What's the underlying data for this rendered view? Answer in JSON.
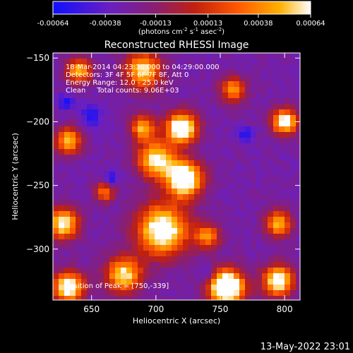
{
  "colorbar": {
    "ticks": [
      "-0.00064",
      "-0.00038",
      "-0.00013",
      "0.00013",
      "0.00038",
      "0.00064"
    ],
    "tick_values": [
      -0.00064,
      -0.00038,
      -0.00013,
      0.00013,
      0.00038,
      0.00064
    ],
    "label_prefix": "(photons cm",
    "label_exp1": "-2",
    "label_mid": " s",
    "label_exp2": "-1",
    "label_mid2": " asec",
    "label_exp3": "-2",
    "label_suffix": ")",
    "range": [
      -0.00064,
      0.00064
    ],
    "colors": [
      "#1010ff",
      "#6a1fc0",
      "#8a1f6f",
      "#c02010",
      "#ff5a00",
      "#ffb000",
      "#ffffff"
    ]
  },
  "chart_data": {
    "type": "heatmap",
    "title": "Reconstructed RHESSI Image",
    "xlabel": "Heliocentric X (arcsec)",
    "ylabel": "Heliocentric Y (arcsec)",
    "x_ticks": [
      650,
      700,
      750,
      800
    ],
    "y_ticks": [
      -150,
      -200,
      -250,
      -300
    ],
    "xlim": [
      620,
      812
    ],
    "ylim": [
      -340,
      -146
    ],
    "peak": {
      "x": 750,
      "y": -339
    },
    "annotations": [
      "18-Mar-2014 04:23:36.000 to 04:29:00.000",
      "Detectors: 3F 4F 5F 6F 7F 8F, Att 0",
      "Energy Range: 12.0 - 25.0 keV",
      "Clean     Total counts: 9.06E+03"
    ],
    "peak_label": "Position of Peak = [750,-339]"
  },
  "footer": {
    "timestamp": "13-May-2022 23:01"
  },
  "colors": {
    "background": "#000000",
    "foreground": "#ffffff"
  }
}
